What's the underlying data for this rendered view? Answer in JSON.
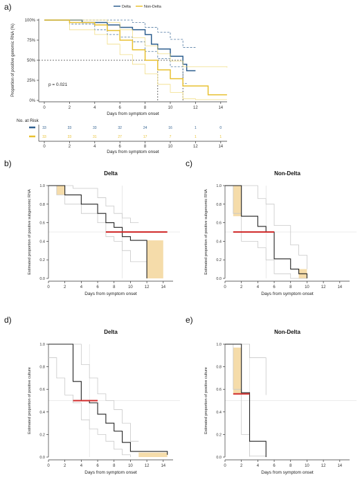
{
  "figure": {
    "panel_labels": [
      "a)",
      "b)",
      "c)",
      "d)",
      "e)"
    ]
  },
  "colors": {
    "delta": "#2e5f8f",
    "nondelta": "#e8c030",
    "nondelta_light": "#f0d870",
    "band": "#f5dcaa",
    "median": "#d02a2a",
    "axis": "#333333",
    "grid": "#d8d8d8",
    "step": "#222222",
    "ci": "#c8c8c8"
  },
  "chart_data": [
    {
      "id": "a",
      "type": "line",
      "subtype": "kaplan-meier",
      "ylabel": "Proportion of positive genomic RNA (%)",
      "xlabel": "Days from symptom onset",
      "ylim": [
        0,
        100
      ],
      "y_ticks": [
        "0%",
        "25%",
        "50%",
        "75%",
        "100%"
      ],
      "x_ticks": [
        "0",
        "2",
        "4",
        "6",
        "8",
        "10",
        "12",
        "14"
      ],
      "annotation": "p = 0.021",
      "legend": [
        "Delta",
        "Non-Delta"
      ],
      "legend_position": "top",
      "series": [
        {
          "name": "Delta",
          "color": "delta",
          "steps": [
            [
              0,
              100
            ],
            [
              2,
              100
            ],
            [
              3,
              97
            ],
            [
              5,
              94
            ],
            [
              6,
              91
            ],
            [
              7,
              88
            ],
            [
              8,
              82
            ],
            [
              8.5,
              70
            ],
            [
              9,
              64
            ],
            [
              10,
              55
            ],
            [
              11,
              45
            ],
            [
              11.3,
              37
            ],
            [
              12,
              37
            ]
          ],
          "ci_upper": [
            [
              0,
              100
            ],
            [
              3,
              100
            ],
            [
              6,
              100
            ],
            [
              7,
              97
            ],
            [
              8,
              91
            ],
            [
              9,
              85
            ],
            [
              10,
              76
            ],
            [
              11,
              66
            ],
            [
              12,
              66
            ]
          ],
          "ci_lower": [
            [
              0,
              100
            ],
            [
              2,
              95
            ],
            [
              4,
              88
            ],
            [
              5,
              82
            ],
            [
              6,
              79
            ],
            [
              7,
              73
            ],
            [
              8,
              61
            ],
            [
              9,
              52
            ],
            [
              10,
              42
            ],
            [
              11,
              21
            ],
            [
              11.3,
              21
            ]
          ]
        },
        {
          "name": "Non-Delta",
          "color": "nondelta",
          "steps": [
            [
              0,
              100
            ],
            [
              2,
              97
            ],
            [
              4,
              94
            ],
            [
              5,
              87
            ],
            [
              6,
              75
            ],
            [
              7,
              63
            ],
            [
              8,
              50
            ],
            [
              9,
              38
            ],
            [
              10,
              27
            ],
            [
              11,
              18
            ],
            [
              12,
              18
            ],
            [
              13,
              7
            ],
            [
              14.5,
              7
            ]
          ],
          "ci_upper": [
            [
              0,
              100
            ],
            [
              3,
              100
            ],
            [
              5,
              97
            ],
            [
              6,
              88
            ],
            [
              7,
              78
            ],
            [
              8,
              68
            ],
            [
              9,
              58
            ],
            [
              10,
              49
            ],
            [
              11,
              42
            ],
            [
              12,
              42
            ],
            [
              13,
              42
            ],
            [
              14.5,
              41
            ]
          ],
          "ci_lower": [
            [
              0,
              100
            ],
            [
              2,
              88
            ],
            [
              4,
              82
            ],
            [
              5,
              70
            ],
            [
              6,
              57
            ],
            [
              7,
              45
            ],
            [
              8,
              33
            ],
            [
              9,
              20
            ],
            [
              10,
              10
            ],
            [
              11,
              2
            ],
            [
              12,
              1
            ],
            [
              14.5,
              1
            ]
          ]
        }
      ],
      "reference_lines": {
        "y_median": 50,
        "x_delta_median": 11,
        "x_nondelta_median": 9
      }
    },
    {
      "id": "risk",
      "type": "table",
      "title": "No. at Risk",
      "xlabel": "Days from symptom onset",
      "x_ticks": [
        "0",
        "2",
        "4",
        "6",
        "8",
        "10",
        "12",
        "14"
      ],
      "rows": [
        {
          "name": "Delta",
          "color": "delta",
          "values": [
            "33",
            "33",
            "33",
            "32",
            "24",
            "16",
            "1",
            "0"
          ]
        },
        {
          "name": "Non-Delta",
          "color": "nondelta",
          "values": [
            "33",
            "33",
            "31",
            "27",
            "17",
            "7",
            "1",
            "1"
          ]
        }
      ]
    },
    {
      "id": "b",
      "type": "line",
      "subtype": "kaplan-meier",
      "title": "Delta",
      "ylabel": "Estimated proportion of positive subgenomic RNA",
      "xlabel": "Days from symptom onset",
      "ylim": [
        0,
        1
      ],
      "y_ticks": [
        "0.0",
        "0.2",
        "0.4",
        "0.6",
        "0.8",
        "1.0"
      ],
      "x_ticks": [
        "0",
        "2",
        "4",
        "6",
        "8",
        "10",
        "12",
        "14"
      ],
      "steps": [
        [
          0,
          1
        ],
        [
          1,
          1
        ],
        [
          2,
          0.9
        ],
        [
          4,
          0.8
        ],
        [
          6,
          0.7
        ],
        [
          7,
          0.6
        ],
        [
          8,
          0.55
        ],
        [
          9,
          0.45
        ],
        [
          10,
          0.41
        ],
        [
          12,
          0
        ],
        [
          12,
          0.41
        ]
      ],
      "ci_upper": [
        [
          0,
          1
        ],
        [
          2,
          1
        ],
        [
          3,
          0.97
        ],
        [
          6,
          0.87
        ],
        [
          7,
          0.78
        ],
        [
          8,
          0.7
        ],
        [
          9,
          0.65
        ],
        [
          10,
          0.6
        ],
        [
          11,
          0.6
        ]
      ],
      "ci_lower": [
        [
          0,
          1
        ],
        [
          1,
          0.9
        ],
        [
          2,
          0.8
        ],
        [
          4,
          0.7
        ],
        [
          6,
          0.6
        ],
        [
          7,
          0.45
        ],
        [
          8,
          0.4
        ],
        [
          9,
          0.3
        ],
        [
          10,
          0.18
        ],
        [
          12,
          0.01
        ]
      ],
      "median_bar": [
        7,
        14.5,
        0.5
      ],
      "bands": [
        [
          1,
          2,
          0.9,
          1.0
        ],
        [
          12,
          14,
          0,
          0.41
        ]
      ],
      "vline": 9
    },
    {
      "id": "c",
      "type": "line",
      "subtype": "kaplan-meier",
      "title": "Non-Delta",
      "ylabel": "Estimated proportion of positive subgenomic RNA",
      "xlabel": "Days from symptom onset",
      "ylim": [
        0,
        1
      ],
      "y_ticks": [
        "0.0",
        "0.2",
        "0.4",
        "0.6",
        "0.8",
        "1.0"
      ],
      "x_ticks": [
        "0",
        "2",
        "4",
        "6",
        "8",
        "10",
        "12",
        "14"
      ],
      "steps": [
        [
          0,
          1
        ],
        [
          1,
          1
        ],
        [
          2,
          0.67
        ],
        [
          4,
          0.56
        ],
        [
          5,
          0.5
        ],
        [
          6,
          0.21
        ],
        [
          8,
          0.1
        ],
        [
          9,
          0.05
        ],
        [
          10,
          0
        ]
      ],
      "ci_upper": [
        [
          0,
          1
        ],
        [
          2,
          1
        ],
        [
          4,
          0.86
        ],
        [
          5,
          0.8
        ],
        [
          6,
          0.57
        ],
        [
          8,
          0.36
        ],
        [
          9,
          0.25
        ],
        [
          10,
          0.1
        ]
      ],
      "ci_lower": [
        [
          0,
          1
        ],
        [
          1,
          0.7
        ],
        [
          2,
          0.4
        ],
        [
          4,
          0.33
        ],
        [
          5,
          0.2
        ],
        [
          6,
          0.05
        ],
        [
          8,
          0
        ],
        [
          10,
          0
        ]
      ],
      "median_bar": [
        1,
        6,
        0.5
      ],
      "bands": [
        [
          1,
          2,
          0.67,
          1.0
        ],
        [
          9,
          10,
          0,
          0.1
        ]
      ],
      "vline": 5
    },
    {
      "id": "d",
      "type": "line",
      "subtype": "kaplan-meier",
      "title": "Delta",
      "ylabel": "Estimated proportion of positive culture",
      "xlabel": "Days from symptom onset",
      "ylim": [
        0,
        1
      ],
      "y_ticks": [
        "0.0",
        "0.2",
        "0.4",
        "0.6",
        "0.8",
        "1.0"
      ],
      "x_ticks": [
        "0",
        "2",
        "4",
        "6",
        "8",
        "10",
        "12",
        "14"
      ],
      "steps": [
        [
          0,
          1
        ],
        [
          3,
          1
        ],
        [
          3,
          0.67
        ],
        [
          4,
          0.5
        ],
        [
          5,
          0.48
        ],
        [
          6,
          0.38
        ],
        [
          7,
          0.3
        ],
        [
          8,
          0.23
        ],
        [
          9,
          0.13
        ],
        [
          10,
          0.05
        ],
        [
          11,
          0.05
        ],
        [
          14.5,
          0.02
        ]
      ],
      "ci_upper": [
        [
          0,
          1
        ],
        [
          3,
          1
        ],
        [
          4,
          0.82
        ],
        [
          5,
          0.7
        ],
        [
          6,
          0.56
        ],
        [
          7,
          0.5
        ],
        [
          8,
          0.42
        ],
        [
          9,
          0.3
        ],
        [
          10,
          0.14
        ],
        [
          11,
          0.14
        ]
      ],
      "ci_lower": [
        [
          0,
          0.88
        ],
        [
          1,
          0.7
        ],
        [
          2,
          0.55
        ],
        [
          3,
          0.48
        ],
        [
          4,
          0.33
        ],
        [
          5,
          0.25
        ],
        [
          6,
          0.2
        ],
        [
          7,
          0.14
        ],
        [
          8,
          0.07
        ],
        [
          9,
          0.02
        ],
        [
          10,
          0
        ]
      ],
      "median_bar": [
        3,
        6,
        0.5
      ],
      "bands": [
        [
          11,
          14.5,
          0,
          0.04
        ]
      ],
      "vline": 5
    },
    {
      "id": "e",
      "type": "line",
      "subtype": "kaplan-meier",
      "title": "Non-Delta",
      "ylabel": "Estimated proportion of positive culture",
      "xlabel": "Days from symptom onset",
      "ylim": [
        0,
        1
      ],
      "y_ticks": [
        "0.0",
        "0.2",
        "0.4",
        "0.6",
        "0.8",
        "1.0"
      ],
      "x_ticks": [
        "0",
        "2",
        "4",
        "6",
        "8",
        "10",
        "12",
        "14"
      ],
      "steps": [
        [
          0,
          1
        ],
        [
          1,
          1
        ],
        [
          2,
          0.57
        ],
        [
          3,
          0.55
        ],
        [
          3,
          0.14
        ],
        [
          5,
          0.14
        ],
        [
          5,
          0
        ]
      ],
      "ci_upper": [
        [
          0,
          1
        ],
        [
          2,
          1
        ],
        [
          3,
          0.88
        ],
        [
          5,
          0.55
        ]
      ],
      "ci_lower": [
        [
          0,
          1
        ],
        [
          1,
          0.6
        ],
        [
          2,
          0.2
        ],
        [
          3,
          0.01
        ],
        [
          5,
          0
        ]
      ],
      "median_bar": [
        1,
        3,
        0.56
      ],
      "bands": [
        [
          1,
          2,
          0.56,
          0.97
        ]
      ],
      "vline": 3
    }
  ]
}
